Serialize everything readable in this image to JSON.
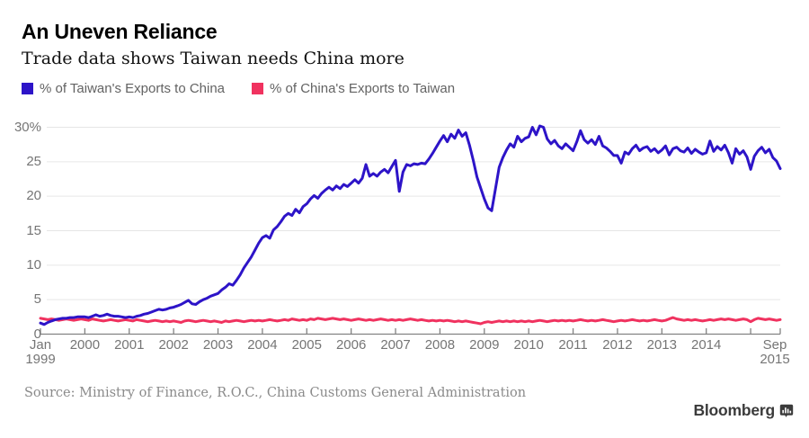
{
  "header": {
    "title": "An Uneven Reliance",
    "subtitle": "Trade data shows Taiwan needs China more"
  },
  "legend": [
    {
      "label": "% of Taiwan's Exports to China",
      "color": "#2d14c8"
    },
    {
      "label": "% of China's Exports to Taiwan",
      "color": "#f0325f"
    }
  ],
  "footer": {
    "source": "Source: Ministry of Finance, R.O.C., China Customs General Administration",
    "brand": "Bloomberg"
  },
  "chart_data": {
    "type": "line",
    "title": "An Uneven Reliance",
    "subtitle": "Trade data shows Taiwan needs China more",
    "x_range": [
      "Jan 1999",
      "Sep 2015"
    ],
    "x_unit": "month",
    "n_points": 201,
    "ylim": [
      0,
      30
    ],
    "grid": "horizontal-only",
    "legend_position": "top-left",
    "colors": {
      "grid": "#e6e6e6",
      "axis": "#828282",
      "tick_text": "#757575"
    },
    "y_ticks": [
      {
        "v": 30,
        "label": "30%"
      },
      {
        "v": 25,
        "label": "25"
      },
      {
        "v": 20,
        "label": "20"
      },
      {
        "v": 15,
        "label": "15"
      },
      {
        "v": 10,
        "label": "10"
      },
      {
        "v": 5,
        "label": "5"
      },
      {
        "v": 0,
        "label": "0"
      }
    ],
    "x_ticks": [
      {
        "m": 0,
        "line1": "Jan",
        "line2": "1999"
      },
      {
        "m": 12,
        "line1": "2000"
      },
      {
        "m": 24,
        "line1": "2001"
      },
      {
        "m": 36,
        "line1": "2002"
      },
      {
        "m": 48,
        "line1": "2003"
      },
      {
        "m": 60,
        "line1": "2004"
      },
      {
        "m": 72,
        "line1": "2005"
      },
      {
        "m": 84,
        "line1": "2006"
      },
      {
        "m": 96,
        "line1": "2007"
      },
      {
        "m": 108,
        "line1": "2008"
      },
      {
        "m": 120,
        "line1": "2009"
      },
      {
        "m": 132,
        "line1": "2010"
      },
      {
        "m": 144,
        "line1": "2011"
      },
      {
        "m": 156,
        "line1": "2012"
      },
      {
        "m": 168,
        "line1": "2013"
      },
      {
        "m": 180,
        "line1": "2014"
      },
      {
        "m": 192,
        "line1": ""
      },
      {
        "m": 200,
        "line1": "Sep",
        "line2": "2015"
      }
    ],
    "series": [
      {
        "name": "% of China's Exports to Taiwan",
        "color": "#f0325f",
        "values": [
          2.3,
          2.2,
          2.1,
          2.2,
          2.1,
          2.0,
          2.1,
          2.2,
          2.1,
          2.0,
          2.1,
          2.2,
          2.1,
          2.0,
          2.2,
          2.1,
          2.0,
          1.9,
          2.0,
          2.1,
          2.0,
          1.9,
          2.0,
          2.1,
          2.0,
          1.9,
          2.1,
          2.0,
          1.9,
          1.8,
          1.9,
          2.0,
          1.9,
          1.8,
          1.9,
          1.8,
          1.9,
          1.8,
          1.7,
          1.9,
          2.0,
          1.9,
          1.8,
          1.9,
          2.0,
          1.9,
          1.8,
          1.9,
          1.8,
          1.7,
          1.9,
          1.8,
          1.9,
          2.0,
          1.9,
          1.8,
          1.9,
          2.0,
          1.9,
          2.0,
          1.9,
          2.0,
          2.1,
          2.0,
          1.9,
          2.0,
          2.1,
          2.0,
          2.2,
          2.1,
          2.0,
          2.1,
          2.0,
          2.2,
          2.1,
          2.3,
          2.2,
          2.1,
          2.2,
          2.3,
          2.2,
          2.1,
          2.2,
          2.1,
          2.0,
          2.1,
          2.2,
          2.1,
          2.0,
          2.1,
          2.0,
          2.1,
          2.2,
          2.1,
          2.0,
          2.1,
          2.0,
          2.1,
          2.0,
          2.1,
          2.2,
          2.1,
          2.0,
          2.1,
          2.0,
          1.9,
          2.0,
          1.9,
          2.0,
          1.9,
          2.0,
          1.9,
          1.8,
          1.9,
          1.8,
          1.9,
          1.8,
          1.7,
          1.6,
          1.5,
          1.7,
          1.8,
          1.7,
          1.8,
          1.9,
          1.8,
          1.9,
          1.8,
          1.9,
          1.8,
          1.9,
          1.8,
          1.9,
          1.8,
          1.9,
          2.0,
          1.9,
          1.8,
          1.9,
          2.0,
          1.9,
          2.0,
          1.9,
          2.0,
          1.9,
          2.0,
          2.1,
          2.0,
          1.9,
          2.0,
          1.9,
          2.0,
          2.1,
          2.0,
          1.9,
          1.8,
          1.9,
          2.0,
          1.9,
          2.0,
          2.1,
          2.0,
          1.9,
          2.0,
          1.9,
          2.0,
          2.1,
          2.0,
          1.9,
          2.0,
          2.2,
          2.4,
          2.2,
          2.1,
          2.0,
          2.1,
          2.0,
          2.1,
          2.0,
          1.9,
          2.0,
          2.1,
          2.0,
          2.1,
          2.2,
          2.1,
          2.2,
          2.1,
          2.0,
          2.1,
          2.2,
          2.1,
          1.8,
          2.1,
          2.3,
          2.2,
          2.1,
          2.2,
          2.1,
          2.0,
          2.1
        ]
      },
      {
        "name": "% of Taiwan's Exports to China",
        "color": "#2d14c8",
        "values": [
          1.6,
          1.4,
          1.7,
          1.9,
          2.1,
          2.2,
          2.3,
          2.3,
          2.4,
          2.4,
          2.5,
          2.5,
          2.5,
          2.4,
          2.6,
          2.8,
          2.6,
          2.7,
          2.9,
          2.7,
          2.6,
          2.6,
          2.5,
          2.4,
          2.5,
          2.4,
          2.6,
          2.7,
          2.9,
          3.0,
          3.2,
          3.4,
          3.6,
          3.5,
          3.6,
          3.8,
          3.9,
          4.1,
          4.3,
          4.6,
          4.9,
          4.4,
          4.3,
          4.7,
          5.0,
          5.2,
          5.5,
          5.7,
          5.9,
          6.4,
          6.8,
          7.3,
          7.1,
          7.8,
          8.6,
          9.6,
          10.4,
          11.2,
          12.2,
          13.2,
          14.0,
          14.3,
          13.9,
          15.1,
          15.6,
          16.3,
          17.1,
          17.5,
          17.2,
          18.1,
          17.6,
          18.5,
          18.9,
          19.6,
          20.1,
          19.7,
          20.4,
          20.9,
          21.3,
          20.9,
          21.5,
          21.1,
          21.7,
          21.4,
          21.9,
          22.4,
          21.9,
          22.6,
          24.6,
          22.9,
          23.3,
          22.9,
          23.5,
          23.9,
          23.4,
          24.3,
          25.2,
          20.7,
          23.5,
          24.6,
          24.4,
          24.7,
          24.6,
          24.8,
          24.7,
          25.4,
          26.2,
          27.1,
          28.0,
          28.8,
          27.9,
          29.0,
          28.4,
          29.6,
          28.7,
          29.2,
          27.4,
          25.2,
          22.8,
          21.2,
          19.6,
          18.3,
          17.9,
          21.0,
          24.2,
          25.6,
          26.7,
          27.6,
          27.1,
          28.7,
          27.9,
          28.4,
          28.6,
          30.0,
          28.9,
          30.2,
          30.0,
          28.3,
          27.6,
          28.1,
          27.3,
          26.9,
          27.6,
          27.1,
          26.6,
          27.9,
          29.5,
          28.2,
          27.7,
          28.2,
          27.5,
          28.7,
          27.3,
          27.0,
          26.5,
          25.9,
          25.9,
          24.8,
          26.4,
          26.1,
          26.9,
          27.4,
          26.6,
          27.0,
          27.2,
          26.5,
          26.9,
          26.3,
          26.7,
          27.3,
          26.0,
          26.9,
          27.1,
          26.6,
          26.4,
          27.0,
          26.2,
          26.8,
          26.4,
          26.1,
          26.3,
          28.0,
          26.5,
          27.2,
          26.7,
          27.4,
          26.3,
          24.8,
          26.9,
          26.1,
          26.6,
          25.7,
          23.9,
          25.8,
          26.6,
          27.1,
          26.3,
          26.8,
          25.6,
          25.1,
          24.0
        ]
      }
    ]
  }
}
